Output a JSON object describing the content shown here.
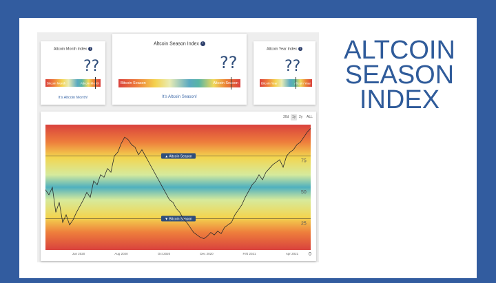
{
  "month_panel": {
    "title": "Altcoin Month Index",
    "value": "??",
    "bar_left": "Bitcoin Month",
    "bar_right": "Altcoin Month",
    "link": "It's Altcoin Month!"
  },
  "season_panel": {
    "title": "Altcoin Season Index",
    "value": "??",
    "bar_left": "Bitcoin Season",
    "bar_right": "Altcoin Season",
    "link": "It's Altcoin Season!"
  },
  "year_panel": {
    "title": "Altcoin Year Index",
    "value": "??",
    "bar_left": "Bitcoin Year",
    "bar_right": "Altcoin Year",
    "link": ""
  },
  "range_buttons": [
    "30d",
    "1y",
    "2y",
    "ALL"
  ],
  "range_active": "1y",
  "headline": [
    "ALTCOIN",
    "SEASON",
    "INDEX"
  ],
  "chart_data": {
    "type": "line",
    "x_ticks": [
      "Jun 2020",
      "Aug 2020",
      "Oct 2020",
      "Dec 2020",
      "Feb 2021",
      "Apr 2021"
    ],
    "y_ticks": [
      25,
      50,
      75
    ],
    "ylim": [
      0,
      100
    ],
    "right_edge_label": "0",
    "annotations": [
      {
        "text": "▲ Altcoin Season",
        "y": 75
      },
      {
        "text": "▼ Bitcoin Season",
        "y": 25
      }
    ],
    "series": [
      {
        "values": [
          48,
          44,
          50,
          30,
          38,
          22,
          28,
          20,
          24,
          30,
          35,
          40,
          46,
          42,
          55,
          52,
          60,
          58,
          65,
          62,
          75,
          78,
          85,
          90,
          88,
          84,
          82,
          76,
          80,
          75,
          70,
          65,
          60,
          55,
          50,
          45,
          40,
          38,
          33,
          30,
          25,
          22,
          18,
          14,
          12,
          10,
          9,
          11,
          14,
          12,
          15,
          13,
          18,
          20,
          22,
          28,
          32,
          36,
          42,
          47,
          52,
          55,
          60,
          56,
          62,
          65,
          68,
          70,
          72,
          66,
          75,
          78,
          80,
          84,
          86,
          90,
          94,
          97
        ]
      }
    ]
  }
}
